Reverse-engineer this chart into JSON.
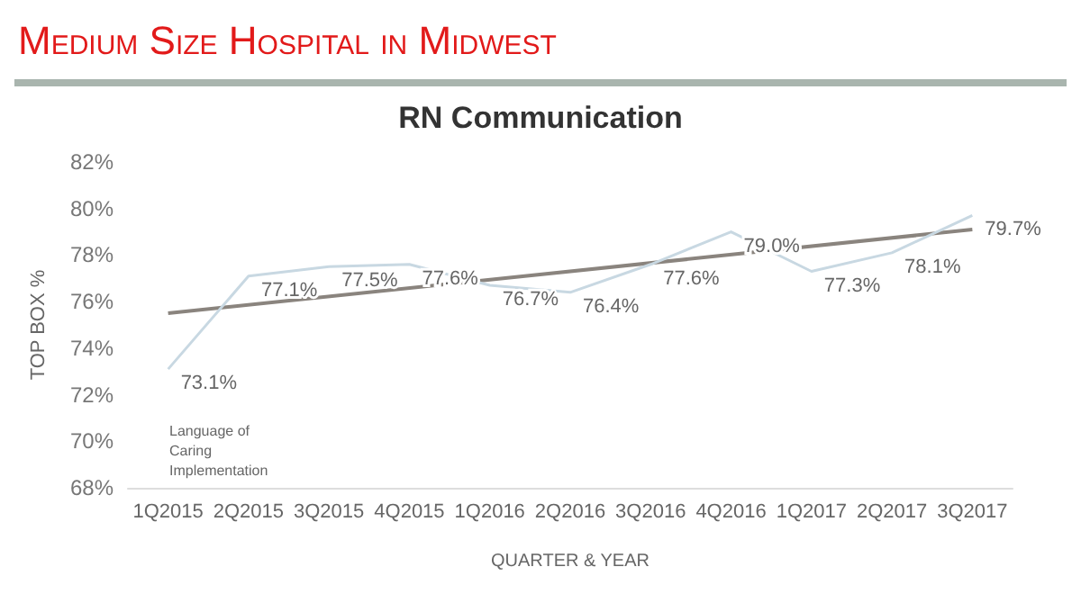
{
  "chart_data": {
    "type": "line",
    "title": "Medium Size Hospital in Midwest",
    "subtitle": "RN Communication",
    "xlabel": "QUARTER & YEAR",
    "ylabel": "TOP BOX %",
    "categories": [
      "1Q2015",
      "2Q2015",
      "3Q2015",
      "4Q2015",
      "1Q2016",
      "2Q2016",
      "3Q2016",
      "4Q2016",
      "1Q2017",
      "2Q2017",
      "3Q2017"
    ],
    "series": [
      {
        "color": "#c8d8e2",
        "values": [
          73.1,
          77.1,
          77.5,
          77.6,
          76.7,
          76.4,
          77.6,
          79.0,
          77.3,
          78.1,
          79.7
        ],
        "value_labels": [
          "73.1%",
          "77.1%",
          "77.5%",
          "77.6%",
          "76.7%",
          "76.4%",
          "77.6%",
          "79.0%",
          "77.3%",
          "78.1%",
          "79.7%"
        ]
      },
      {
        "type": "line",
        "color": "#8a847e",
        "x": [
          "1Q2015",
          "3Q2017"
        ],
        "values": [
          75.5,
          79.1
        ]
      }
    ],
    "ylim": [
      68,
      82
    ],
    "yticks": [
      {
        "value": 68,
        "label": "68%"
      },
      {
        "value": 70,
        "label": "70%"
      },
      {
        "value": 72,
        "label": "72%"
      },
      {
        "value": 74,
        "label": "74%"
      },
      {
        "value": 76,
        "label": "76%"
      },
      {
        "value": 78,
        "label": "78%"
      },
      {
        "value": 80,
        "label": "80%"
      },
      {
        "value": 82,
        "label": "82%"
      }
    ],
    "annotations": [
      "Language of\nCaring\nImplementation"
    ],
    "grid": false,
    "marker": "none"
  }
}
